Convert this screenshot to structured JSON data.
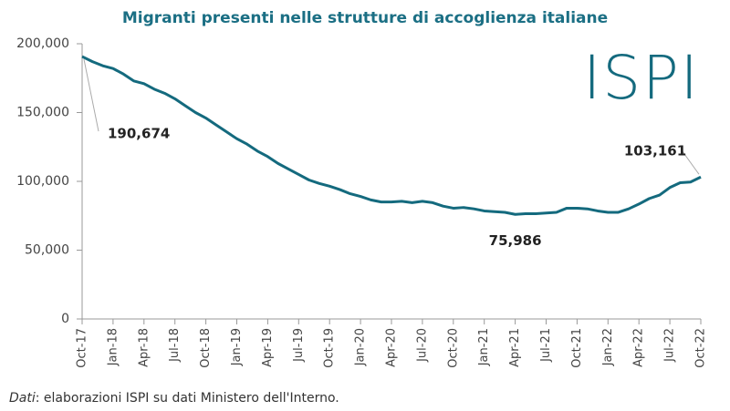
{
  "chart_data": {
    "type": "line",
    "title": "Migranti presenti nelle strutture di accoglienza italiane",
    "logo": "ISPI",
    "source_label": "Dati",
    "source": ": elaborazioni ISPI su dati Ministero dell'Interno.",
    "categories": [
      "Oct-17",
      null,
      null,
      "Jan-18",
      null,
      null,
      "Apr-18",
      null,
      null,
      "Jul-18",
      null,
      null,
      "Oct-18",
      null,
      null,
      "Jan-19",
      null,
      null,
      "Apr-19",
      null,
      null,
      "Jul-19",
      null,
      null,
      "Oct-19",
      null,
      null,
      "Jan-20",
      null,
      null,
      "Apr-20",
      null,
      null,
      "Jul-20",
      null,
      null,
      "Oct-20",
      null,
      null,
      "Jan-21",
      null,
      null,
      "Apr-21",
      null,
      null,
      "Jul-21",
      null,
      null,
      "Oct-21",
      null,
      null,
      "Jan-22",
      null,
      null,
      "Apr-22",
      null,
      null,
      "Jul-22",
      null,
      null,
      "Oct-22"
    ],
    "values": [
      190674,
      187000,
      184000,
      182000,
      178000,
      173000,
      171000,
      167000,
      164000,
      160000,
      155000,
      150000,
      146000,
      141000,
      136000,
      131000,
      127000,
      122000,
      118000,
      113000,
      109000,
      105000,
      101000,
      98500,
      96500,
      94000,
      91000,
      89000,
      86500,
      85000,
      85000,
      85500,
      84500,
      85500,
      84500,
      82000,
      80500,
      81000,
      80000,
      78500,
      78000,
      77500,
      75986,
      76500,
      76500,
      77000,
      77500,
      80500,
      80500,
      80000,
      78500,
      77500,
      77500,
      80000,
      83500,
      87500,
      90000,
      95500,
      99000,
      99500,
      103161
    ],
    "value_labels": [
      "190,674",
      null,
      null,
      null,
      null,
      null,
      null,
      null,
      null,
      null,
      null,
      null,
      null,
      null,
      null,
      null,
      null,
      null,
      null,
      null,
      null,
      null,
      null,
      null,
      null,
      null,
      null,
      null,
      null,
      null,
      null,
      null,
      null,
      null,
      null,
      null,
      null,
      null,
      null,
      null,
      null,
      null,
      "75,986",
      null,
      null,
      null,
      null,
      null,
      null,
      null,
      null,
      null,
      null,
      null,
      null,
      null,
      null,
      null,
      null,
      null,
      "103,161"
    ],
    "color": "#146a7e",
    "ylim": [
      0,
      200000
    ],
    "yticks": [
      0,
      {
        "value": 50000,
        "label": "50,000"
      },
      {
        "value": 100000,
        "label": "100,000"
      },
      {
        "value": 150000,
        "label": "150,000"
      },
      {
        "value": 200000,
        "label": "200,000"
      }
    ],
    "grid": false
  }
}
